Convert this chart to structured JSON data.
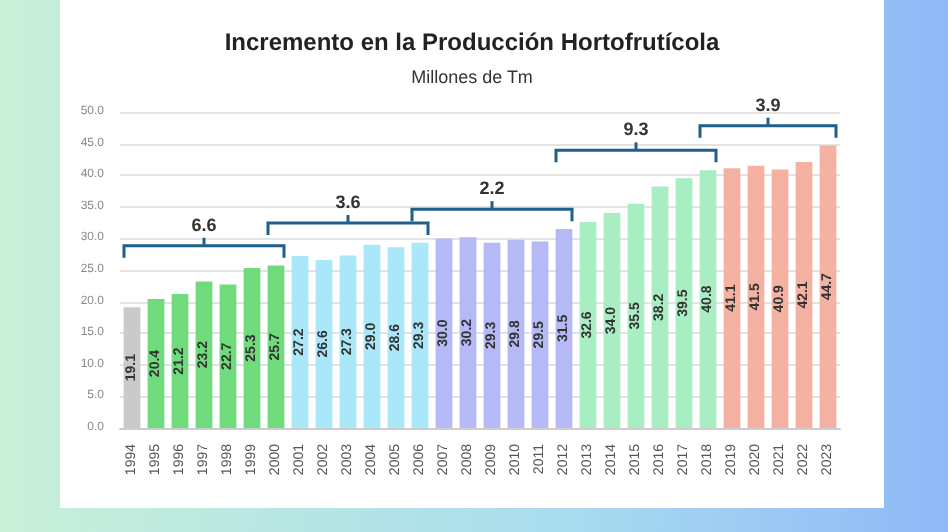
{
  "chart_data": {
    "type": "bar",
    "title": "Incremento en la Producción Hortofrutícola",
    "subtitle": "Millones de Tm",
    "categories": [
      "1994",
      "1995",
      "1996",
      "1997",
      "1998",
      "1999",
      "2000",
      "2001",
      "2002",
      "2003",
      "2004",
      "2005",
      "2006",
      "2007",
      "2008",
      "2009",
      "2010",
      "2011",
      "2012",
      "2013",
      "2014",
      "2015",
      "2016",
      "2017",
      "2018",
      "2019",
      "2020",
      "2021",
      "2022",
      "2023"
    ],
    "values": [
      19.1,
      20.4,
      21.2,
      23.2,
      22.7,
      25.3,
      25.7,
      27.2,
      26.6,
      27.3,
      29.0,
      28.6,
      29.3,
      30.0,
      30.2,
      29.3,
      29.8,
      29.5,
      31.5,
      32.6,
      34.0,
      35.5,
      38.2,
      39.5,
      40.8,
      41.1,
      41.5,
      40.9,
      42.1,
      44.7
    ],
    "colors": [
      "#c9cacc",
      "#6fdb7c",
      "#6fdb7c",
      "#6fdb7c",
      "#6fdb7c",
      "#6fdb7c",
      "#6fdb7c",
      "#a9e7f9",
      "#a9e7f9",
      "#a9e7f9",
      "#a9e7f9",
      "#a9e7f9",
      "#a9e7f9",
      "#b5b9f5",
      "#b5b9f5",
      "#b5b9f5",
      "#b5b9f5",
      "#b5b9f5",
      "#b5b9f5",
      "#a9edc2",
      "#a9edc2",
      "#a9edc2",
      "#a9edc2",
      "#a9edc2",
      "#a9edc2",
      "#f5b2a2",
      "#f5b2a2",
      "#f5b2a2",
      "#f5b2a2",
      "#f5b2a2"
    ],
    "ylim": [
      0,
      50
    ],
    "yticks": [
      {
        "value": 0,
        "label": "0.0"
      },
      {
        "value": 5,
        "label": "5.0"
      },
      {
        "value": 10,
        "label": "10.0"
      },
      {
        "value": 15,
        "label": "15.0"
      },
      {
        "value": 20,
        "label": "20.0"
      },
      {
        "value": 25,
        "label": "25.0"
      },
      {
        "value": 30,
        "label": "30.0"
      },
      {
        "value": 35,
        "label": "35.0"
      },
      {
        "value": 40,
        "label": "40.0"
      },
      {
        "value": 45,
        "label": "45.0"
      },
      {
        "value": 50,
        "label": "50.0"
      }
    ],
    "grid": "y",
    "value_labels": [
      "19.1",
      "20.4",
      "21.2",
      "23.2",
      "22.7",
      "25.3",
      "25.7",
      "27.2",
      "26.6",
      "27.3",
      "29.0",
      "28.6",
      "29.3",
      "30.0",
      "30.2",
      "29.3",
      "29.8",
      "29.5",
      "31.5",
      "32.6",
      "34.0",
      "35.5",
      "38.2",
      "39.5",
      "40.8",
      "41.1",
      "41.5",
      "40.9",
      "42.1",
      "44.7"
    ],
    "annotations": [
      "6.6",
      "3.6",
      "2.2",
      "9.3",
      "3.9"
    ]
  }
}
